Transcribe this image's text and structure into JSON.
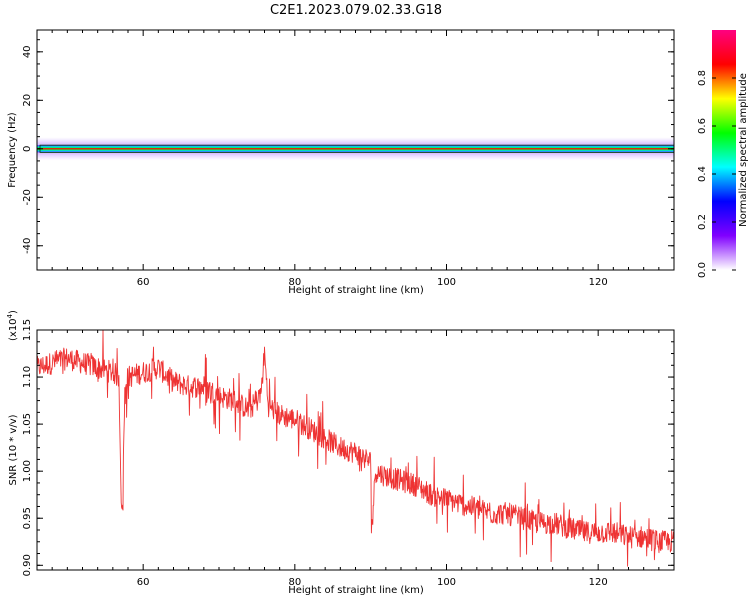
{
  "chart_data": [
    {
      "type": "heatmap",
      "title": "C2E1.2023.079.02.33.G18",
      "xlabel": "Height of straight line (km)",
      "ylabel": "Frequency (Hz)",
      "xlim": [
        46,
        130
      ],
      "ylim": [
        -50,
        49
      ],
      "x_ticks": [
        "60",
        "80",
        "100",
        "120"
      ],
      "y_ticks": [
        "40",
        "20",
        "0",
        "-20",
        "-40"
      ],
      "band_center_hz": 0,
      "band_halfwidth_hz": 1.5,
      "colorbar": {
        "label": "Normalized spectral amplitude",
        "range": [
          0,
          1
        ],
        "ticks": [
          "0.0",
          "0.2",
          "0.4",
          "0.6",
          "0.8"
        ],
        "colors": [
          "#ffffff",
          "#8000ff",
          "#0000ff",
          "#00ffff",
          "#00ff00",
          "#ffff00",
          "#ff0000",
          "#ff0080"
        ]
      }
    },
    {
      "type": "line",
      "xlabel": "Height of straight line (km)",
      "ylabel": "SNR (10 * v/v)",
      "yscale_label": "(x10",
      "yscale_exp": "4",
      "yscale_close": ")",
      "xlim": [
        46,
        130
      ],
      "ylim": [
        0.895,
        1.15
      ],
      "x_ticks": [
        "60",
        "80",
        "100",
        "120"
      ],
      "y_ticks": [
        "1.15",
        "1.10",
        "1.05",
        "1.00",
        "0.95",
        "0.90"
      ],
      "color": "#ee3333",
      "series": [
        {
          "x": [
            46,
            48,
            50,
            52,
            54,
            56,
            56.8,
            57.2,
            57.6,
            58,
            60,
            62,
            64,
            66,
            68,
            70,
            72,
            74,
            75.5,
            76,
            76.5,
            78,
            80,
            82,
            84,
            86,
            88,
            90,
            90.2,
            90.6,
            92,
            94,
            96,
            98,
            100,
            102,
            104,
            106,
            108,
            110,
            112,
            114,
            116,
            118,
            120,
            122,
            124,
            126,
            128,
            130
          ],
          "y": [
            1.11,
            1.115,
            1.12,
            1.115,
            1.11,
            1.105,
            1.1,
            0.935,
            1.09,
            1.1,
            1.105,
            1.11,
            1.095,
            1.09,
            1.09,
            1.08,
            1.075,
            1.065,
            1.08,
            1.125,
            1.07,
            1.06,
            1.055,
            1.045,
            1.035,
            1.025,
            1.02,
            1.01,
            0.94,
            1.0,
            0.995,
            0.99,
            0.985,
            0.975,
            0.97,
            0.965,
            0.96,
            0.955,
            0.955,
            0.95,
            0.945,
            0.945,
            0.94,
            0.935,
            0.935,
            0.935,
            0.93,
            0.93,
            0.925,
            0.925
          ]
        }
      ]
    }
  ]
}
